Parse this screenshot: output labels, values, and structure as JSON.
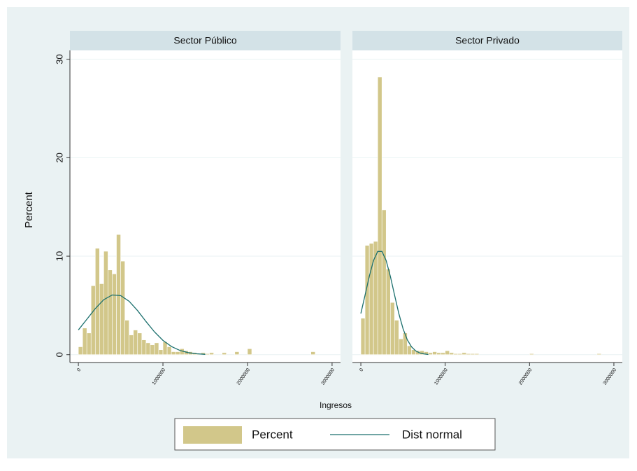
{
  "chart_data": {
    "type": "histogram",
    "ylabel": "Percent",
    "xlabel": "Ingresos",
    "ylim": [
      -0.8,
      30.9
    ],
    "yticks": [
      0,
      10,
      20,
      30
    ],
    "xlim": [
      -100000,
      3100000
    ],
    "xticks": [
      0,
      1000000,
      2000000,
      3000000
    ],
    "grid": true,
    "legend": "bottom",
    "series": [
      {
        "name": "Percent",
        "color": "#d2c78a"
      },
      {
        "name": "Dist normal",
        "color": "#1b6f6d"
      }
    ],
    "bins": [
      0,
      50000,
      100000,
      150000,
      200000,
      250000,
      300000,
      350000,
      400000,
      450000,
      500000,
      550000,
      600000,
      650000,
      700000,
      750000,
      800000,
      850000,
      900000,
      950000,
      1000000,
      1050000,
      1100000,
      1150000,
      1200000,
      1250000,
      1300000,
      1350000,
      1400000,
      1450000,
      1500000,
      1550000,
      1600000,
      1650000,
      1700000,
      1750000,
      1800000,
      1850000,
      1900000,
      1950000,
      2000000,
      2050000,
      2100000,
      2150000,
      2200000,
      2250000,
      2300000,
      2350000,
      2400000,
      2450000,
      2500000,
      2550000,
      2600000,
      2650000,
      2700000,
      2750000,
      2800000,
      2850000,
      2900000,
      2950000,
      3000000
    ],
    "panels": [
      {
        "title": "Sector Público",
        "values": [
          0.8,
          2.7,
          2.2,
          7.0,
          10.8,
          7.2,
          10.5,
          8.6,
          8.2,
          12.2,
          9.5,
          3.5,
          2.0,
          2.5,
          2.2,
          1.5,
          1.2,
          1.0,
          1.2,
          0.5,
          1.3,
          0.8,
          0.3,
          0.3,
          0.6,
          0.4,
          0.3,
          0.2,
          0.1,
          0.2,
          0.1,
          0.2,
          0,
          0,
          0.2,
          0,
          0,
          0.3,
          0,
          0,
          0.6,
          0,
          0,
          0,
          0,
          0,
          0,
          0,
          0,
          0,
          0,
          0,
          0,
          0,
          0,
          0.3,
          0,
          0,
          0,
          0
        ],
        "curve_x": [
          0,
          100000,
          200000,
          300000,
          400000,
          500000,
          600000,
          700000,
          800000,
          900000,
          1000000,
          1100000,
          1200000,
          1300000,
          1400000,
          1500000
        ],
        "curve_values": [
          2.51,
          3.59,
          4.68,
          5.58,
          6.06,
          6.0,
          5.42,
          4.47,
          3.36,
          2.31,
          1.45,
          0.83,
          0.43,
          0.2,
          0.09,
          0.03
        ]
      },
      {
        "title": "Sector Privado",
        "values": [
          3.7,
          11.1,
          11.3,
          11.5,
          28.2,
          14.7,
          8.7,
          5.3,
          3.5,
          1.6,
          2.2,
          0.9,
          0.5,
          0.4,
          0.4,
          0.3,
          0.2,
          0.3,
          0.2,
          0.2,
          0.4,
          0.2,
          0.1,
          0.1,
          0.2,
          0.1,
          0.1,
          0.1,
          0,
          0,
          0,
          0,
          0,
          0,
          0,
          0,
          0,
          0,
          0,
          0,
          0.1,
          0,
          0,
          0,
          0,
          0,
          0,
          0,
          0,
          0,
          0,
          0,
          0,
          0,
          0,
          0,
          0.1,
          0,
          0,
          0
        ],
        "curve_x": [
          0,
          50000,
          100000,
          150000,
          200000,
          250000,
          300000,
          350000,
          400000,
          450000,
          500000,
          550000,
          600000,
          650000,
          700000,
          750000,
          800000
        ],
        "curve_values": [
          4.18,
          6.04,
          7.95,
          9.56,
          10.48,
          10.48,
          9.56,
          7.95,
          6.04,
          4.18,
          2.64,
          1.52,
          0.8,
          0.38,
          0.17,
          0.07,
          0.02
        ]
      }
    ]
  }
}
